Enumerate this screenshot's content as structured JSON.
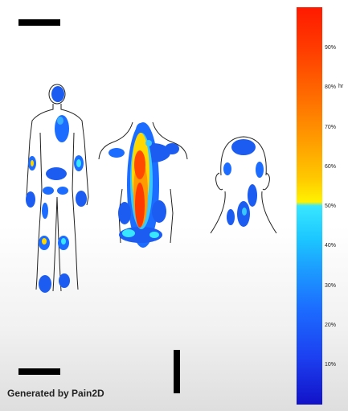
{
  "colorbar": {
    "unit": "hr",
    "ticks": [
      "90%",
      "80%",
      "70%",
      "60%",
      "50%",
      "40%",
      "30%",
      "20%",
      "10%"
    ],
    "colors": {
      "high": "#ff1a00",
      "mid": "#fff200",
      "low": "#1212c8"
    }
  },
  "footer": {
    "credit": "Generated by Pain2D"
  },
  "figures": {
    "front_body": {
      "icon": "front-body-icon"
    },
    "back_torso": {
      "icon": "back-torso-icon"
    },
    "head_back": {
      "icon": "head-back-icon"
    }
  }
}
